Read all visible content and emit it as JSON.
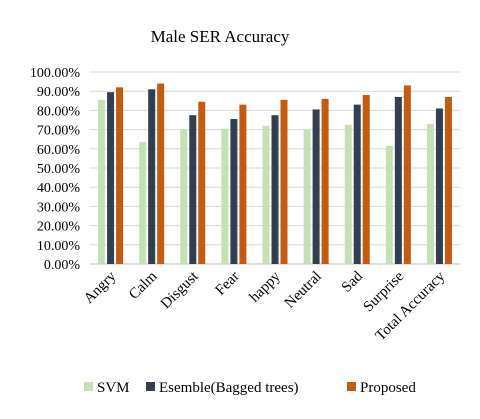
{
  "chart_data": {
    "type": "bar",
    "title": "Male SER Accuracy",
    "xlabel": "",
    "ylabel": "",
    "ylim": [
      0,
      1
    ],
    "yticks": [
      "0.00%",
      "10.00%",
      "20.00%",
      "30.00%",
      "40.00%",
      "50.00%",
      "60.00%",
      "70.00%",
      "80.00%",
      "90.00%",
      "100.00%"
    ],
    "grid": true,
    "legend_position": "bottom",
    "categories": [
      "Angry",
      "Calm",
      "Disgust",
      "Fear",
      "happy",
      "Neutral",
      "Sad",
      "Surprise",
      "Total Accuracy"
    ],
    "series": [
      {
        "name": "SVM",
        "color": "#c5e0b4",
        "values": [
          0.855,
          0.635,
          0.7,
          0.705,
          0.72,
          0.7,
          0.725,
          0.615,
          0.73
        ]
      },
      {
        "name": "Esemble(Bagged trees)",
        "color": "#333f50",
        "values": [
          0.895,
          0.91,
          0.775,
          0.755,
          0.775,
          0.805,
          0.83,
          0.87,
          0.81
        ]
      },
      {
        "name": "Proposed",
        "color": "#c55a11",
        "values": [
          0.92,
          0.94,
          0.845,
          0.83,
          0.855,
          0.86,
          0.88,
          0.93,
          0.87
        ]
      }
    ]
  }
}
